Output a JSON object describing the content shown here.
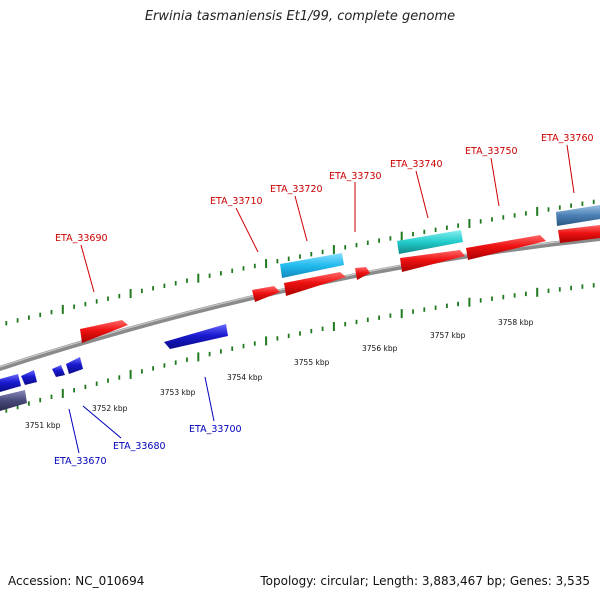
{
  "header": {
    "title": "Erwinia tasmaniensis Et1/99, complete genome"
  },
  "footer": {
    "accession": "Accession: NC_010694",
    "summary": "Topology: circular; Length: 3,883,467 bp; Genes: 3,535"
  },
  "scale_labels": [
    "3751 kbp",
    "3752 kbp",
    "3753 kbp",
    "3754 kbp",
    "3755 kbp",
    "3756 kbp",
    "3757 kbp",
    "3758 kbp"
  ],
  "forward_gene_labels": [
    "ETA_33690",
    "ETA_33710",
    "ETA_33720",
    "ETA_33730",
    "ETA_33740",
    "ETA_33750",
    "ETA_33760"
  ],
  "reverse_gene_labels": [
    "ETA_33670",
    "ETA_33680",
    "ETA_33700"
  ],
  "colors": {
    "forward_cds": "#ee1111",
    "reverse_cds": "#1a1ad0",
    "forward_label": "#cc0000",
    "reverse_label": "#0000bb",
    "backbone": "#8a8a8a",
    "tick": "#1f7a1f",
    "rna_light_blue": "#22bbee",
    "rna_cyan": "#22cccc",
    "steel_blue": "#4a7fb5",
    "slate": "#4a4a7a"
  }
}
